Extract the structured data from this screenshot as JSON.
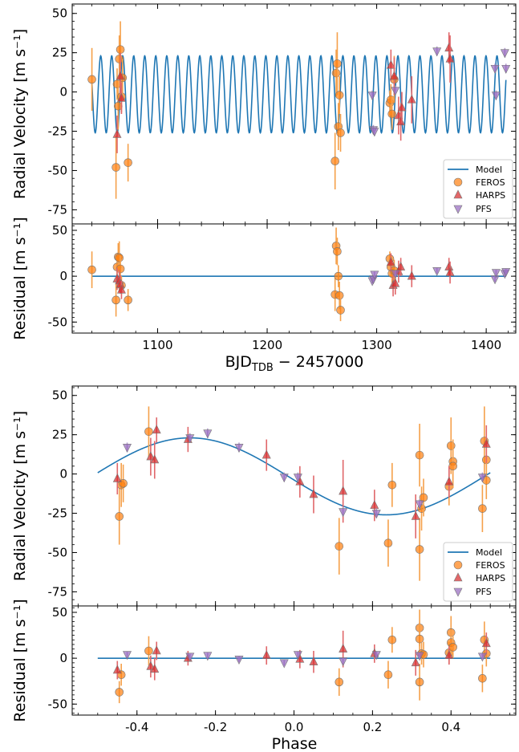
{
  "colors": {
    "model": "#1f77b4",
    "feros": "#ff7f0e",
    "harps": "#d62728",
    "pfs": "#9467bd",
    "errorbar_feros": "#f5a04a",
    "errorbar_harps": "#e0676a",
    "errorbar_pfs": "#b49bd1"
  },
  "labels": {
    "ylabel_rv": "Radial Velocity [m s⁻¹]",
    "ylabel_resid": "Residual [m s⁻¹]",
    "xlabel_time_main": "BJD",
    "xlabel_time_sub": "TDB",
    "xlabel_time_rest": " − 2457000",
    "xlabel_phase": "Phase"
  },
  "legend": {
    "model": "Model",
    "feros": "FEROS",
    "harps": "HARPS",
    "pfs": "PFS"
  },
  "chart_data": [
    {
      "type": "scatter",
      "panel": "time-rv",
      "xlim": [
        1022,
        1427
      ],
      "ylim": [
        -84,
        56
      ],
      "yticks": [
        50,
        25,
        0,
        -25,
        -50,
        -75
      ],
      "model": {
        "amplitude": 24.5,
        "offset": -1.5,
        "period": 10.05,
        "t0": 1038.0,
        "x_range": [
          1040,
          1418
        ]
      },
      "series": [
        {
          "name": "FEROS",
          "marker": "circle",
          "x": [
            1040,
            1062,
            1063,
            1064,
            1065,
            1066,
            1067,
            1068,
            1073,
            1262,
            1263,
            1264,
            1265,
            1266,
            1267,
            1312,
            1313,
            1314,
            1316
          ],
          "y": [
            8,
            -48,
            5,
            -9,
            21,
            27,
            -3,
            9,
            -45,
            -44,
            12,
            18,
            -22,
            -2,
            -26,
            -7,
            -5,
            -14,
            8
          ],
          "err": [
            20,
            20,
            10,
            15,
            15,
            18,
            10,
            12,
            12,
            18,
            15,
            20,
            15,
            12,
            12,
            8,
            10,
            10,
            15
          ]
        },
        {
          "name": "HARPS",
          "marker": "triangle-up",
          "x": [
            1063,
            1066,
            1067,
            1313,
            1316,
            1320,
            1322,
            1323,
            1332,
            1366,
            1367
          ],
          "y": [
            -27,
            10,
            -4,
            17,
            10,
            -15,
            -19,
            -10,
            -5,
            28,
            21
          ],
          "err": [
            12,
            15,
            10,
            10,
            12,
            12,
            12,
            10,
            15,
            10,
            15
          ]
        },
        {
          "name": "PFS",
          "marker": "triangle-down",
          "x": [
            1296,
            1297,
            1298,
            1317,
            1355,
            1408,
            1409,
            1417,
            1418
          ],
          "y": [
            -2,
            -24,
            -25,
            1,
            26,
            15,
            -2,
            25,
            15
          ],
          "err": [
            3,
            3,
            3,
            3,
            3,
            3,
            3,
            3,
            3
          ]
        }
      ]
    },
    {
      "type": "scatter",
      "panel": "time-residual",
      "xlim": [
        1022,
        1427
      ],
      "ylim": [
        -62,
        57
      ],
      "xticks": [
        1100,
        1200,
        1300,
        1400
      ],
      "yticks": [
        50,
        0,
        -50
      ],
      "model_y": 0,
      "series": [
        {
          "name": "FEROS",
          "marker": "circle",
          "x": [
            1040,
            1062,
            1063,
            1064,
            1065,
            1066,
            1067,
            1073,
            1262,
            1263,
            1264,
            1265,
            1266,
            1267,
            1312,
            1313,
            1314,
            1316
          ],
          "y": [
            7,
            -26,
            10,
            21,
            20,
            8,
            -10,
            -26,
            -20,
            33,
            27,
            0,
            -21,
            -37,
            19,
            10,
            3,
            6
          ],
          "err": [
            20,
            18,
            12,
            15,
            18,
            14,
            10,
            12,
            18,
            20,
            15,
            12,
            15,
            12,
            8,
            10,
            10,
            12
          ]
        },
        {
          "name": "HARPS",
          "marker": "triangle-up",
          "x": [
            1063,
            1065,
            1066,
            1067,
            1313,
            1315,
            1317,
            1320,
            1322,
            1332,
            1366,
            1367
          ],
          "y": [
            -3,
            -5,
            -9,
            -15,
            15,
            -10,
            -8,
            5,
            10,
            0,
            10,
            4
          ],
          "err": [
            12,
            12,
            10,
            10,
            10,
            12,
            12,
            12,
            10,
            12,
            10,
            12
          ]
        },
        {
          "name": "PFS",
          "marker": "triangle-down",
          "x": [
            1296,
            1297,
            1298,
            1317,
            1355,
            1408,
            1409,
            1417,
            1418
          ],
          "y": [
            -5,
            -3,
            2,
            3,
            6,
            -3,
            4,
            3,
            5
          ],
          "err": [
            3,
            3,
            3,
            3,
            3,
            3,
            3,
            3,
            3
          ]
        }
      ]
    },
    {
      "type": "scatter",
      "panel": "phase-rv",
      "xlim": [
        -0.565,
        0.565
      ],
      "ylim": [
        -84,
        56
      ],
      "yticks": [
        50,
        25,
        0,
        -25,
        -50,
        -75
      ],
      "model": {
        "amplitude": 24.5,
        "offset": -1.5,
        "x_range": [
          -0.5,
          0.5
        ],
        "phase_peak": -0.265
      },
      "series": [
        {
          "name": "FEROS",
          "marker": "circle",
          "x": [
            -0.445,
            -0.44,
            -0.435,
            -0.37,
            0.115,
            0.24,
            0.25,
            0.32,
            0.32,
            0.325,
            0.33,
            0.395,
            0.4,
            0.405,
            0.405,
            0.48,
            0.485,
            0.49,
            0.49
          ],
          "y": [
            -27,
            -7,
            -6,
            27,
            -46,
            -44,
            -7,
            -48,
            12,
            -22,
            -15,
            -8,
            18,
            8,
            5,
            -22,
            21,
            9,
            -4
          ],
          "err": [
            18,
            14,
            12,
            16,
            18,
            15,
            14,
            20,
            20,
            14,
            12,
            12,
            18,
            14,
            14,
            15,
            22,
            14,
            12
          ]
        },
        {
          "name": "HARPS",
          "marker": "triangle-up",
          "x": [
            -0.45,
            -0.365,
            -0.355,
            -0.35,
            -0.27,
            -0.07,
            0.015,
            0.05,
            0.125,
            0.205,
            0.31,
            0.395,
            0.49
          ],
          "y": [
            -3,
            11,
            9,
            28,
            22,
            12,
            -5,
            -13,
            -11,
            -20,
            -27,
            -5,
            19
          ],
          "err": [
            10,
            12,
            12,
            8,
            8,
            10,
            10,
            12,
            20,
            10,
            14,
            10,
            12
          ]
        },
        {
          "name": "PFS",
          "marker": "triangle-down",
          "x": [
            -0.425,
            -0.265,
            -0.22,
            -0.14,
            -0.025,
            0.01,
            0.125,
            0.21,
            0.32,
            0.48
          ],
          "y": [
            17,
            23,
            26,
            17,
            -2,
            -2,
            -24,
            -25,
            -19,
            -2
          ],
          "err": [
            3,
            3,
            3,
            3,
            3,
            3,
            3,
            3,
            3,
            3
          ]
        }
      ]
    },
    {
      "type": "scatter",
      "panel": "phase-residual",
      "xlim": [
        -0.565,
        0.565
      ],
      "ylim": [
        -62,
        57
      ],
      "xticks": [
        -0.4,
        -0.2,
        0.0,
        0.2,
        0.4
      ],
      "yticks": [
        50,
        0,
        -50
      ],
      "model_y": 0,
      "series": [
        {
          "name": "FEROS",
          "marker": "circle",
          "x": [
            -0.445,
            -0.44,
            -0.37,
            0.115,
            0.24,
            0.25,
            0.32,
            0.32,
            0.32,
            0.325,
            0.33,
            0.395,
            0.4,
            0.4,
            0.405,
            0.48,
            0.485,
            0.49
          ],
          "y": [
            -37,
            -18,
            8,
            -26,
            -18,
            20,
            33,
            21,
            -26,
            5,
            4,
            6,
            28,
            17,
            12,
            -22,
            20,
            5
          ],
          "err": [
            12,
            12,
            16,
            15,
            15,
            14,
            20,
            18,
            20,
            12,
            14,
            12,
            18,
            14,
            12,
            15,
            20,
            14
          ]
        },
        {
          "name": "HARPS",
          "marker": "triangle-up",
          "x": [
            -0.45,
            -0.365,
            -0.355,
            -0.35,
            -0.27,
            -0.07,
            0.015,
            0.05,
            0.125,
            0.205,
            0.31,
            0.395,
            0.49
          ],
          "y": [
            -13,
            -9,
            -12,
            8,
            0,
            3,
            -1,
            -4,
            10,
            5,
            -5,
            3,
            16
          ],
          "err": [
            10,
            12,
            12,
            10,
            8,
            10,
            10,
            12,
            20,
            10,
            14,
            10,
            12
          ]
        },
        {
          "name": "PFS",
          "marker": "triangle-down",
          "x": [
            -0.425,
            -0.265,
            -0.22,
            -0.14,
            -0.025,
            0.01,
            0.125,
            0.21,
            0.32,
            0.48
          ],
          "y": [
            4,
            2,
            3,
            -1,
            -5,
            4,
            -3,
            4,
            3,
            2
          ],
          "err": [
            3,
            3,
            3,
            3,
            3,
            3,
            3,
            3,
            3,
            3
          ]
        }
      ]
    }
  ]
}
